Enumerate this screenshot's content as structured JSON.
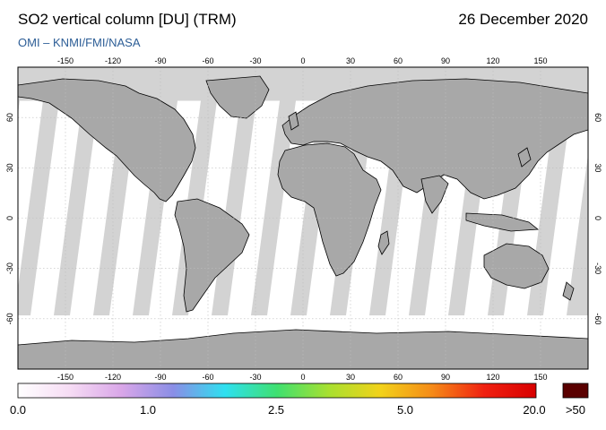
{
  "header": {
    "title": "SO2 vertical column [DU] (TRM)",
    "date": "26 December 2020",
    "credit": "OMI  –  KNMI/FMI/NASA"
  },
  "map": {
    "lon_ticks": [
      "-150",
      "-120",
      "-90",
      "-60",
      "-30",
      "0",
      "30",
      "60",
      "90",
      "120",
      "150"
    ],
    "lat_ticks": [
      "60",
      "30",
      "0",
      "-30",
      "-60"
    ],
    "lon_values": [
      -150,
      -120,
      -90,
      -60,
      -30,
      0,
      30,
      60,
      90,
      120,
      150
    ],
    "lat_values": [
      60,
      30,
      0,
      -30,
      -60
    ],
    "colors": {
      "land": "#a8a8a8",
      "no_data": "#d3d3d3",
      "ocean_data": "#ffffff",
      "coastline": "#000000",
      "grid": "#bdbdbd"
    }
  },
  "colorbar": {
    "labels": [
      "0.0",
      "1.0",
      "2.5",
      "5.0",
      "20.0"
    ],
    "overflow_label": ">50",
    "overflow_color": "#5a0000",
    "stops": [
      "#ffffff",
      "#f6dcf4",
      "#d9a6e8",
      "#8a8ee6",
      "#2ee0f0",
      "#3fe070",
      "#a8e030",
      "#f2d21a",
      "#f58a18",
      "#f02010",
      "#d80000"
    ]
  }
}
